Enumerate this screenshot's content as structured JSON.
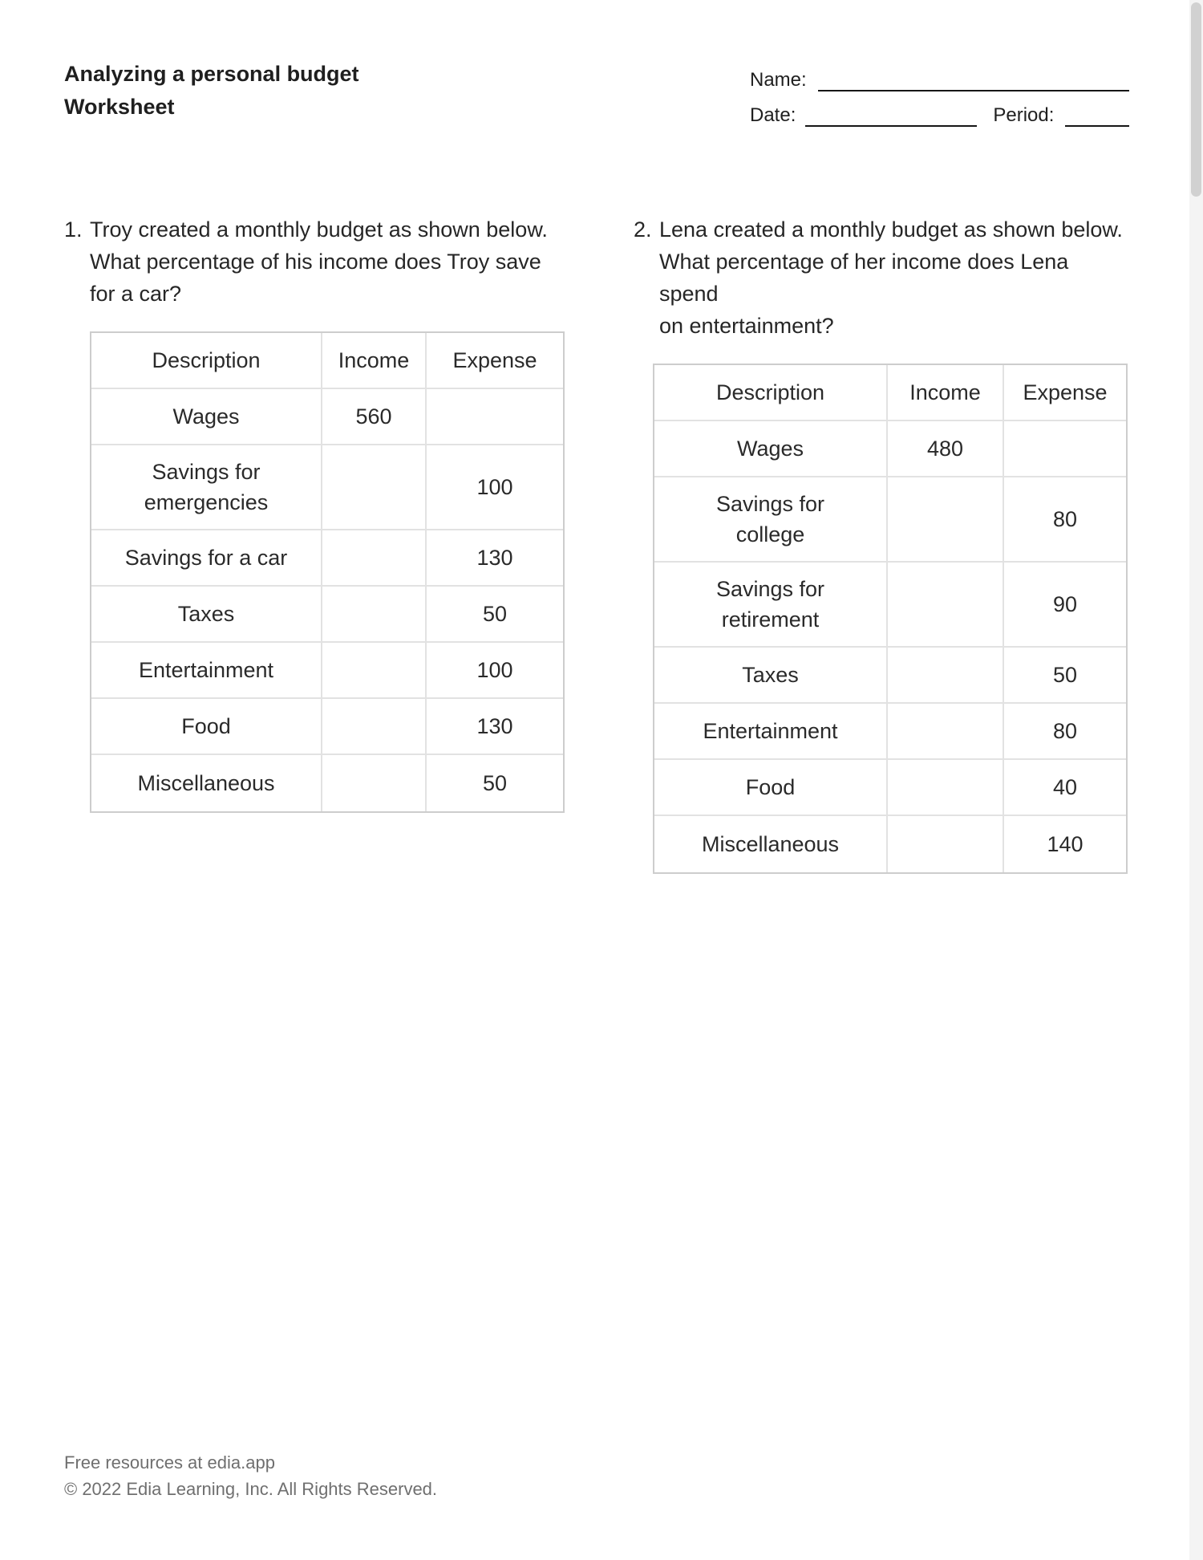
{
  "header": {
    "title_line1": "Analyzing a personal budget",
    "title_line2": "Worksheet",
    "fields": {
      "name_label": "Name:",
      "date_label": "Date:",
      "period_label": "Period:"
    }
  },
  "problems": [
    {
      "number": "1.",
      "question": "Troy created a monthly budget as shown below.\nWhat percentage of his income does Troy save\nfor a car?",
      "table": {
        "columns": [
          "Description",
          "Income",
          "Expense"
        ],
        "rows": [
          {
            "description": "Wages",
            "income": "560",
            "expense": ""
          },
          {
            "description": "Savings for\nemergencies",
            "income": "",
            "expense": "100"
          },
          {
            "description": "Savings for a car",
            "income": "",
            "expense": "130"
          },
          {
            "description": "Taxes",
            "income": "",
            "expense": "50"
          },
          {
            "description": "Entertainment",
            "income": "",
            "expense": "100"
          },
          {
            "description": "Food",
            "income": "",
            "expense": "130"
          },
          {
            "description": "Miscellaneous",
            "income": "",
            "expense": "50"
          }
        ]
      }
    },
    {
      "number": "2.",
      "question": "Lena created a monthly budget as shown below.\nWhat percentage of her income does Lena spend\non entertainment?",
      "table": {
        "columns": [
          "Description",
          "Income",
          "Expense"
        ],
        "rows": [
          {
            "description": "Wages",
            "income": "480",
            "expense": ""
          },
          {
            "description": "Savings for\ncollege",
            "income": "",
            "expense": "80"
          },
          {
            "description": "Savings for\nretirement",
            "income": "",
            "expense": "90"
          },
          {
            "description": "Taxes",
            "income": "",
            "expense": "50"
          },
          {
            "description": "Entertainment",
            "income": "",
            "expense": "80"
          },
          {
            "description": "Food",
            "income": "",
            "expense": "40"
          },
          {
            "description": "Miscellaneous",
            "income": "",
            "expense": "140"
          }
        ]
      }
    }
  ],
  "footer": {
    "line1": "Free resources at edia.app",
    "line2": "© 2022 Edia Learning, Inc. All Rights Reserved."
  },
  "colors": {
    "text": "#262626",
    "muted_text": "#6f6f6f",
    "table_inner_border": "#e2e2e2",
    "table_outer_border": "#cdcdcd",
    "scrollbar_thumb": "#d1d1d1",
    "scrollbar_track": "#f4f4f4"
  }
}
